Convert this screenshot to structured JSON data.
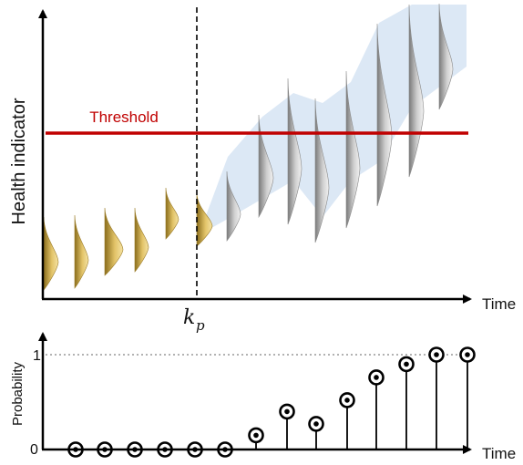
{
  "top_panel": {
    "y_axis_label": "Health indicator",
    "x_axis_label": "Time",
    "threshold_label": "Threshold",
    "prediction_point_label": "k",
    "prediction_point_subscript": "p",
    "past_distribution_count": 6,
    "predicted_distribution_count": 8,
    "colors": {
      "threshold": "#c00000",
      "past_distribution": "#d4b050",
      "predicted_distribution": "#b0b0b0",
      "uncertainty_band": "#dce8f5",
      "axis": "#000000"
    }
  },
  "bottom_panel": {
    "y_axis_label": "Probability",
    "x_axis_label": "Time",
    "y_tick_top": "1",
    "y_tick_bottom": "0",
    "probabilities": [
      0,
      0,
      0,
      0,
      0,
      0,
      0.15,
      0.4,
      0.27,
      0.52,
      0.76,
      0.9,
      1.0,
      1.0
    ]
  }
}
